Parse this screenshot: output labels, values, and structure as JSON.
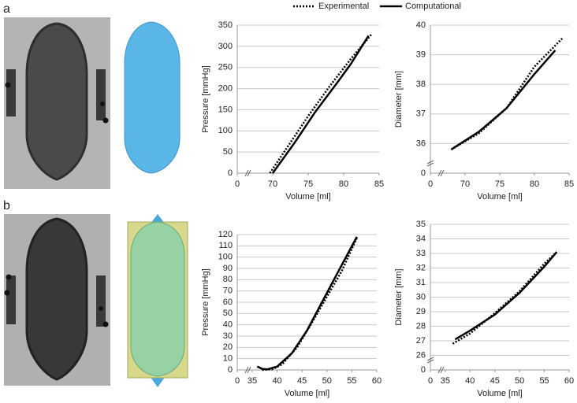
{
  "panel_labels": [
    "a",
    "b"
  ],
  "legend": [
    {
      "name": "Experimental",
      "dash": "dotted"
    },
    {
      "name": "Computational",
      "dash": "solid"
    }
  ],
  "chart_data": [
    {
      "type": "line",
      "x_label": "Volume [ml]",
      "y_label": "Pressure [mmHg]",
      "xlim": [
        65,
        85
      ],
      "xticks": [
        0,
        70,
        75,
        80,
        85
      ],
      "ylim": [
        0,
        350
      ],
      "yticks": [
        0,
        50,
        100,
        150,
        200,
        250,
        300,
        350
      ],
      "x_break": true,
      "y_break": false,
      "grid": true,
      "color": "#000000",
      "series": [
        {
          "x": [
            69.6,
            72,
            75,
            78,
            81,
            84
          ],
          "values": [
            0,
            60,
            135,
            205,
            270,
            330
          ]
        },
        {
          "x": [
            70,
            73,
            76,
            79,
            81,
            83.5
          ],
          "values": [
            0,
            70,
            145,
            212,
            258,
            325
          ]
        }
      ]
    },
    {
      "type": "line",
      "x_label": "Volume [ml]",
      "y_label": "Diameter [mm]",
      "xlim": [
        65,
        85
      ],
      "xticks": [
        0,
        70,
        75,
        80,
        85
      ],
      "ylim": [
        35,
        40
      ],
      "yticks": [
        0,
        36,
        37,
        38,
        39,
        40
      ],
      "x_break": true,
      "y_break": true,
      "grid": true,
      "color": "#000000",
      "series": [
        {
          "x": [
            68,
            72,
            76,
            80,
            84
          ],
          "values": [
            35.8,
            36.35,
            37.2,
            38.6,
            39.55
          ]
        },
        {
          "x": [
            68,
            72,
            76,
            80,
            83
          ],
          "values": [
            35.8,
            36.4,
            37.2,
            38.35,
            39.15
          ]
        }
      ]
    },
    {
      "type": "line",
      "x_label": "Volume [ml]",
      "y_label": "Pressure [mmHg]",
      "xlim": [
        32,
        60
      ],
      "xticks": [
        0,
        35,
        40,
        45,
        50,
        55,
        60
      ],
      "ylim": [
        0,
        120
      ],
      "yticks": [
        0,
        10,
        20,
        30,
        40,
        50,
        60,
        70,
        80,
        90,
        100,
        110,
        120
      ],
      "x_break": true,
      "y_break": false,
      "grid": true,
      "color": "#000000",
      "series": [
        {
          "x": [
            37,
            39,
            41,
            44,
            47,
            50,
            53,
            56
          ],
          "values": [
            0,
            0.5,
            5,
            20,
            42,
            65,
            88,
            117
          ]
        },
        {
          "x": [
            36,
            37,
            38,
            40,
            43,
            46,
            49,
            52,
            56
          ],
          "values": [
            3,
            1,
            0.5,
            3,
            15,
            35,
            60,
            85,
            118
          ]
        }
      ]
    },
    {
      "type": "line",
      "x_label": "Volume [ml]",
      "y_label": "Diameter [mm]",
      "xlim": [
        32,
        60
      ],
      "xticks": [
        0,
        35,
        40,
        45,
        50,
        55,
        60
      ],
      "ylim": [
        25,
        35
      ],
      "yticks": [
        0,
        26,
        27,
        28,
        29,
        30,
        31,
        32,
        33,
        34,
        35
      ],
      "x_break": true,
      "y_break": true,
      "grid": true,
      "color": "#000000",
      "series": [
        {
          "x": [
            36.5,
            40,
            45,
            50,
            55,
            57.5
          ],
          "values": [
            26.8,
            27.5,
            28.9,
            30.4,
            32.3,
            33.1
          ]
        },
        {
          "x": [
            37,
            40,
            45,
            50,
            55,
            57.5
          ],
          "values": [
            27.1,
            27.7,
            28.8,
            30.3,
            32.1,
            33.1
          ]
        }
      ]
    }
  ]
}
